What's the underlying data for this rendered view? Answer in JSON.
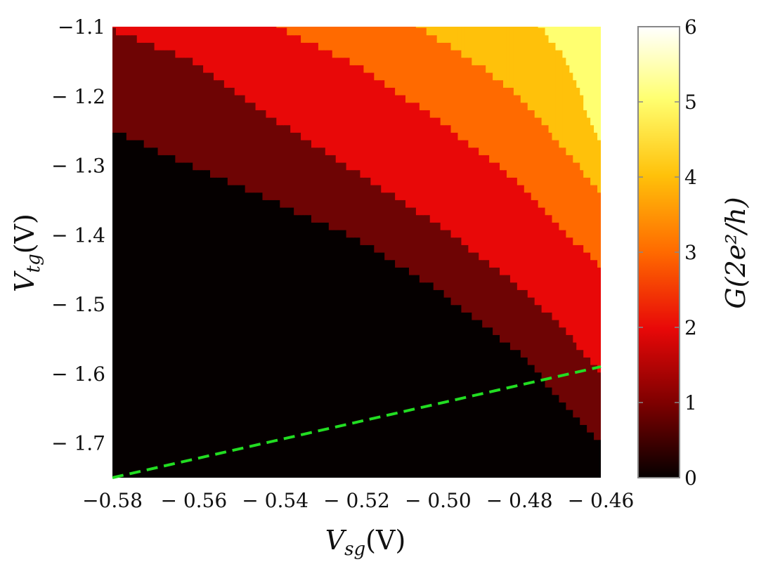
{
  "chart_data": {
    "type": "heatmap",
    "x_axis": {
      "label": "V",
      "label_sub": "sg",
      "label_unit": "(V)",
      "range": [
        -0.58,
        -0.46
      ],
      "ticks": [
        -0.58,
        -0.56,
        -0.54,
        -0.52,
        -0.5,
        -0.48,
        -0.46
      ],
      "tick_labels": [
        "−0.58",
        "− 0.56",
        "− 0.54",
        "− 0.52",
        "− 0.50",
        "− 0.48",
        "− 0.46"
      ]
    },
    "y_axis": {
      "label": "V",
      "label_sub": "tg",
      "label_unit": "(V)",
      "range": [
        -1.75,
        -1.1
      ],
      "ticks": [
        -1.1,
        -1.2,
        -1.3,
        -1.4,
        -1.5,
        -1.6,
        -1.7
      ],
      "tick_labels": [
        "−1.1",
        "− 1.2",
        "− 1.3",
        "− 1.4",
        "− 1.5",
        "− 1.6",
        "− 1.7"
      ]
    },
    "colorbar": {
      "label": "G(2e²/h)",
      "range": [
        0,
        6
      ],
      "ticks": [
        0,
        1,
        2,
        3,
        4,
        5,
        6
      ],
      "tick_labels": [
        "0",
        "1",
        "2",
        "3",
        "4",
        "5",
        "6"
      ],
      "stops": [
        "#050000",
        "#7a0000",
        "#e80808",
        "#ff6a00",
        "#ffc10a",
        "#ffff70",
        "#ffffff"
      ]
    },
    "plateaus": [
      {
        "G": 0,
        "color": "#050000"
      },
      {
        "G": 1,
        "color": "#6e0404"
      },
      {
        "G": 2,
        "color": "#e80808"
      },
      {
        "G": 3,
        "color": "#ff6a00"
      },
      {
        "G": 4,
        "color": "#ffc10a"
      },
      {
        "G": 5,
        "color": "#ffff70"
      },
      {
        "G": 6,
        "color": "#ffffff"
      }
    ],
    "boundaries": [
      {
        "between": [
          0,
          1
        ],
        "points": [
          [
            -0.58,
            -1.25
          ],
          [
            -0.52,
            -1.405
          ],
          [
            -0.5,
            -1.48
          ],
          [
            -0.48,
            -1.57
          ],
          [
            -0.465,
            -1.67
          ],
          [
            -0.46,
            -1.7
          ]
        ]
      },
      {
        "between": [
          1,
          2
        ],
        "points": [
          [
            -0.58,
            -1.105
          ],
          [
            -0.56,
            -1.15
          ],
          [
            -0.54,
            -1.235
          ],
          [
            -0.52,
            -1.31
          ],
          [
            -0.5,
            -1.385
          ],
          [
            -0.48,
            -1.475
          ],
          [
            -0.47,
            -1.53
          ],
          [
            -0.46,
            -1.6
          ]
        ]
      },
      {
        "between": [
          2,
          3
        ],
        "points": [
          [
            -0.54,
            -1.1
          ],
          [
            -0.52,
            -1.155
          ],
          [
            -0.5,
            -1.235
          ],
          [
            -0.48,
            -1.325
          ],
          [
            -0.47,
            -1.39
          ],
          [
            -0.46,
            -1.445
          ]
        ]
      },
      {
        "between": [
          3,
          4
        ],
        "points": [
          [
            -0.505,
            -1.1
          ],
          [
            -0.49,
            -1.155
          ],
          [
            -0.48,
            -1.2
          ],
          [
            -0.47,
            -1.27
          ],
          [
            -0.46,
            -1.34
          ]
        ]
      },
      {
        "between": [
          4,
          5
        ],
        "points": [
          [
            -0.475,
            -1.1
          ],
          [
            -0.47,
            -1.135
          ],
          [
            -0.465,
            -1.2
          ],
          [
            -0.46,
            -1.27
          ]
        ]
      },
      {
        "between": [
          5,
          6
        ],
        "points": [
          [
            -0.46,
            -1.1
          ],
          [
            -0.459,
            -1.12
          ],
          [
            -0.4585,
            -1.15
          ],
          [
            -0.458,
            -1.19
          ]
        ]
      }
    ],
    "overlay_line": {
      "style": "dashed",
      "color": "#22dd22",
      "points": [
        [
          -0.58,
          -1.75
        ],
        [
          -0.46,
          -1.59
        ]
      ]
    }
  }
}
